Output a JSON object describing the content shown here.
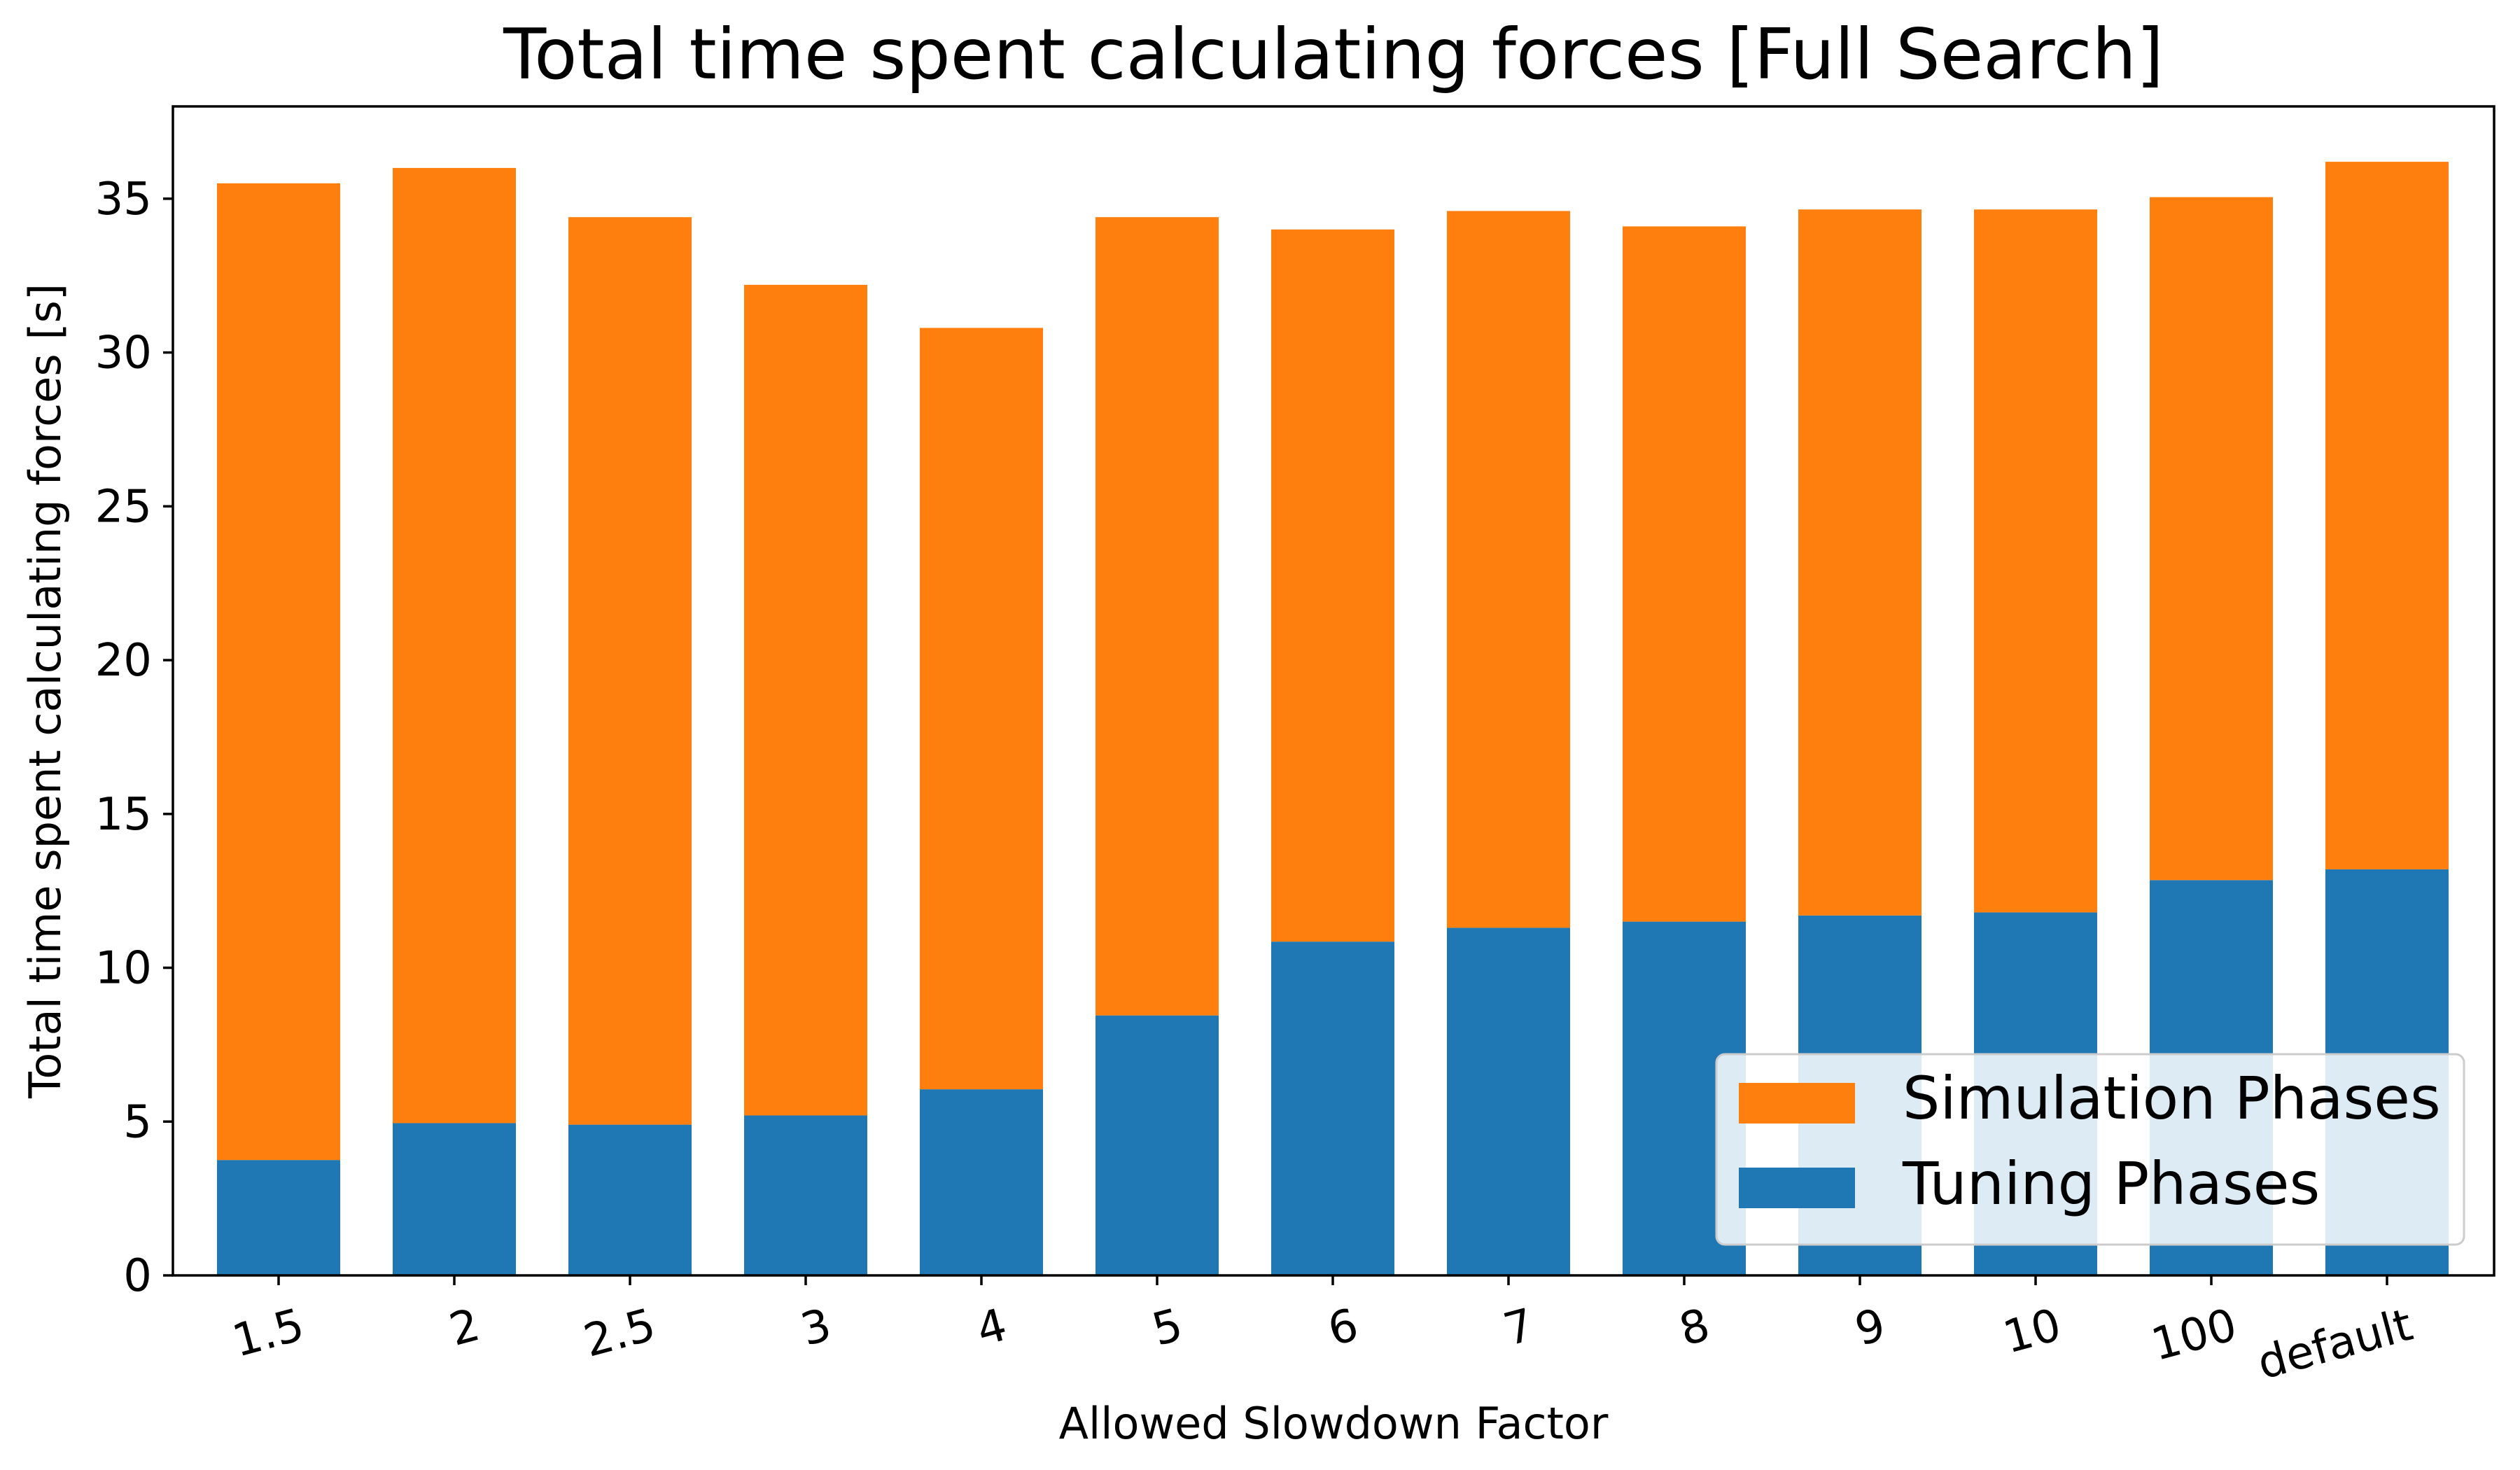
{
  "chart_data": {
    "type": "bar",
    "stacked": true,
    "title": "Total time spent calculating forces [Full Search]",
    "xlabel": "Allowed Slowdown Factor",
    "ylabel": "Total time spent calculating forces [s]",
    "categories": [
      "1.5",
      "2",
      "2.5",
      "3",
      "4",
      "5",
      "6",
      "7",
      "8",
      "9",
      "10",
      "100",
      "default"
    ],
    "ylim": [
      0,
      38
    ],
    "yticks": [
      0,
      5,
      10,
      15,
      20,
      25,
      30,
      35
    ],
    "series": [
      {
        "name": "Tuning Phases",
        "color": "#1f77b4",
        "values": [
          3.75,
          4.95,
          4.9,
          5.2,
          6.05,
          8.45,
          10.85,
          11.3,
          11.5,
          11.7,
          11.8,
          12.85,
          13.2
        ]
      },
      {
        "name": "Simulation Phases",
        "color": "#ff7f0e",
        "values": [
          31.75,
          31.05,
          29.5,
          27.0,
          24.75,
          25.95,
          23.15,
          23.3,
          22.6,
          22.95,
          22.85,
          22.2,
          23.0
        ]
      }
    ],
    "legend": {
      "position": "lower-right",
      "entries": [
        {
          "label": "Simulation Phases",
          "color": "#ff7f0e"
        },
        {
          "label": "Tuning Phases",
          "color": "#1f77b4"
        }
      ]
    },
    "grid": false
  }
}
